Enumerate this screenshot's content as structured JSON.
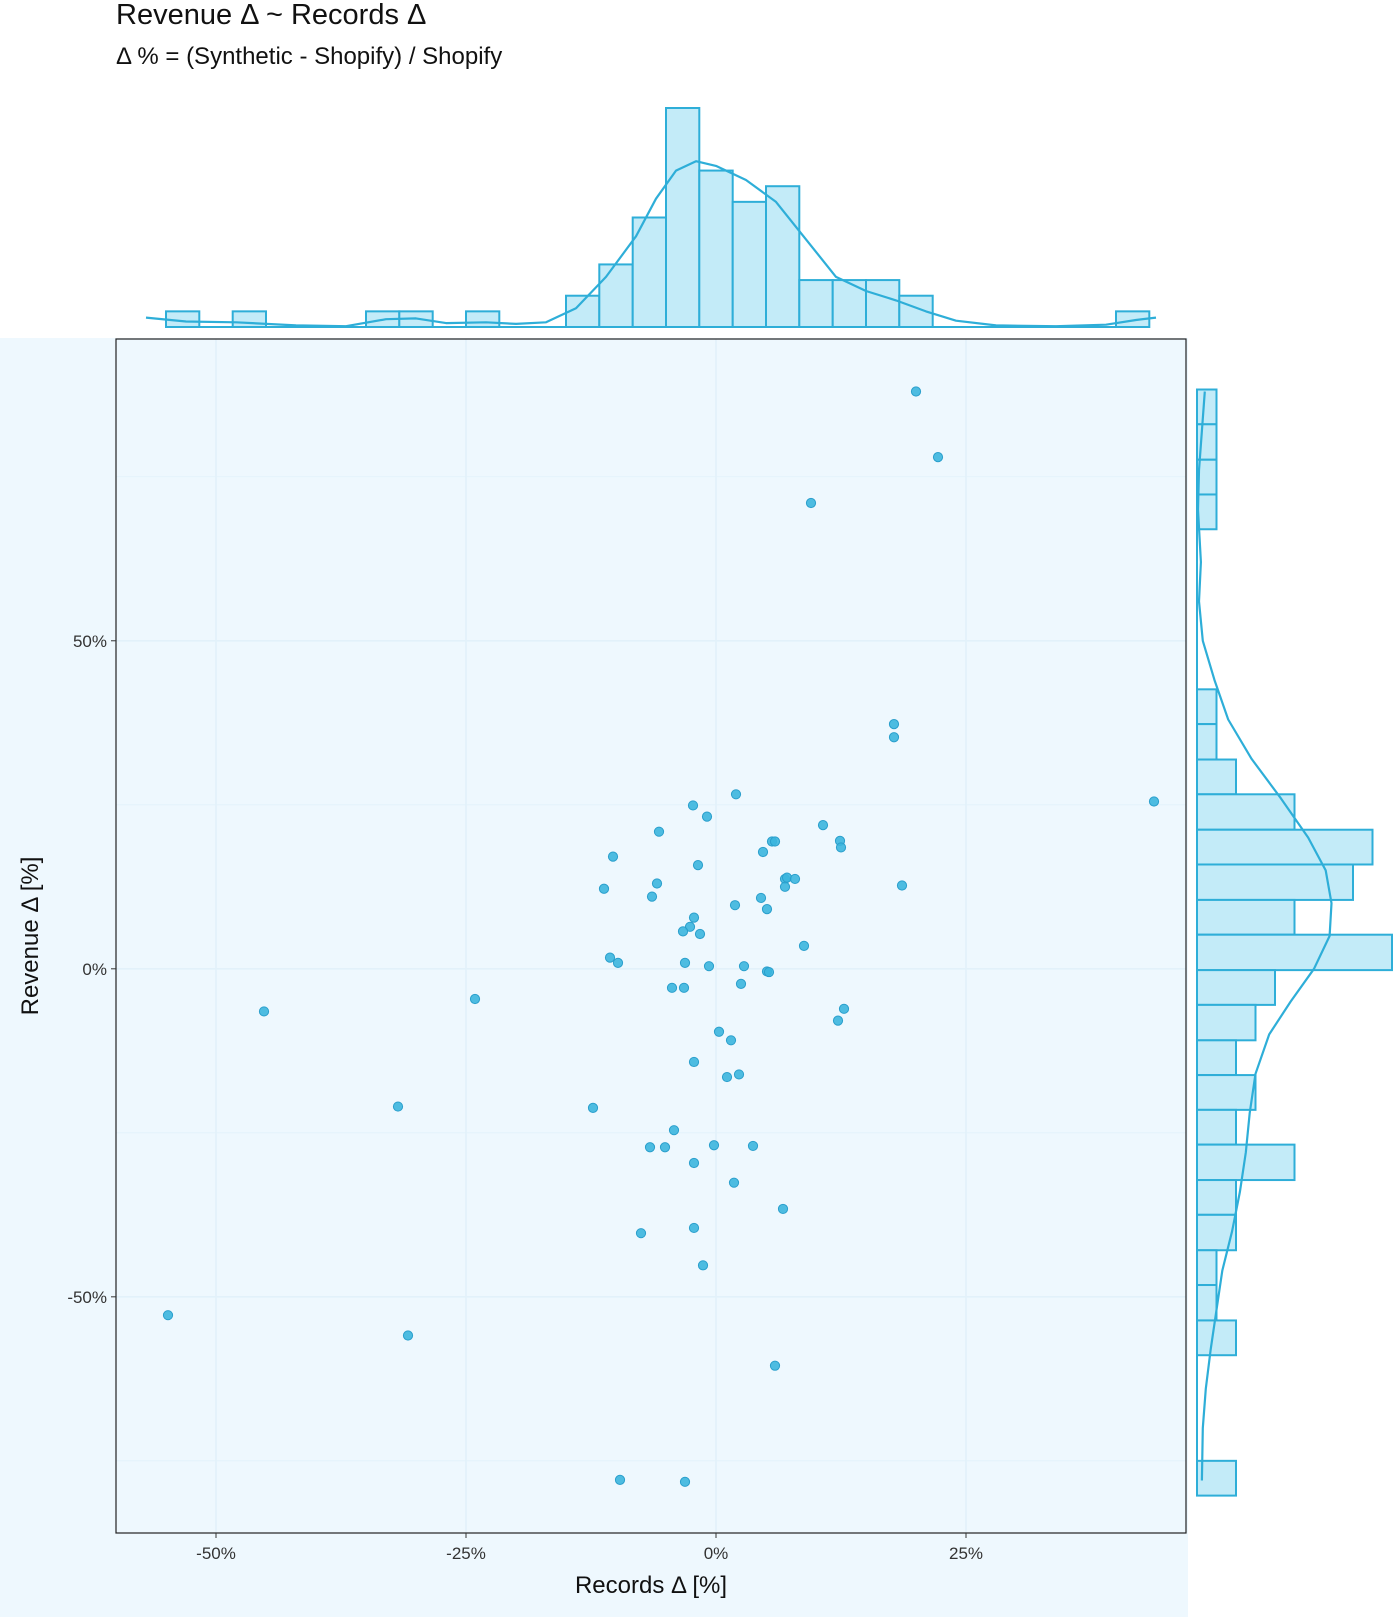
{
  "chart_data": {
    "type": "scatter",
    "title": "Revenue Δ ~ Records Δ",
    "subtitle": "Δ % = (Synthetic - Shopify) / Shopify",
    "xlabel": "Records Δ [%]",
    "ylabel": "Revenue Δ [%]",
    "xlim": [
      -60,
      47
    ],
    "ylim": [
      -86,
      96
    ],
    "x_ticks": [
      {
        "value": -50,
        "label": "-50%"
      },
      {
        "value": -25,
        "label": "-25%"
      },
      {
        "value": 0,
        "label": "0%"
      },
      {
        "value": 25,
        "label": "25%"
      }
    ],
    "y_ticks": [
      {
        "value": 50,
        "label": "50%"
      },
      {
        "value": 0,
        "label": "0%"
      },
      {
        "value": -50,
        "label": "-50%"
      }
    ],
    "grid": true,
    "marginals": "histogram with density curve on top (Records Δ) and right (Revenue Δ)",
    "colors": {
      "point": "#3bb5de",
      "point_stroke": "#2a9fcc",
      "hist_fill": "#c3ebf8",
      "hist_stroke": "#2eaed8",
      "panel": "#eef8fe",
      "grid": "#e2f1fa"
    },
    "points": [
      {
        "x": 20,
        "y": 88
      },
      {
        "x": 22.2,
        "y": 78
      },
      {
        "x": 9.5,
        "y": 71
      },
      {
        "x": 17.8,
        "y": 37.3
      },
      {
        "x": 17.8,
        "y": 35.3
      },
      {
        "x": 43.8,
        "y": 25.5
      },
      {
        "x": 2,
        "y": 26.6
      },
      {
        "x": -2.3,
        "y": 24.9
      },
      {
        "x": -0.9,
        "y": 23.2
      },
      {
        "x": -5.7,
        "y": 20.9
      },
      {
        "x": 10.7,
        "y": 21.9
      },
      {
        "x": 5.6,
        "y": 19.4
      },
      {
        "x": 5.9,
        "y": 19.4
      },
      {
        "x": 12.4,
        "y": 19.5
      },
      {
        "x": 12.5,
        "y": 18.5
      },
      {
        "x": 4.7,
        "y": 17.8
      },
      {
        "x": -10.3,
        "y": 17.1
      },
      {
        "x": -1.8,
        "y": 15.8
      },
      {
        "x": 6.9,
        "y": 13.7
      },
      {
        "x": 7.1,
        "y": 13.9
      },
      {
        "x": 7.9,
        "y": 13.7
      },
      {
        "x": -5.9,
        "y": 13
      },
      {
        "x": 6.9,
        "y": 12.5
      },
      {
        "x": -11.2,
        "y": 12.2
      },
      {
        "x": 18.6,
        "y": 12.7
      },
      {
        "x": -6.4,
        "y": 11
      },
      {
        "x": 4.5,
        "y": 10.8
      },
      {
        "x": 1.9,
        "y": 9.7
      },
      {
        "x": 5.1,
        "y": 9.1
      },
      {
        "x": -2.2,
        "y": 7.8
      },
      {
        "x": -2.6,
        "y": 6.4
      },
      {
        "x": -3.3,
        "y": 5.7
      },
      {
        "x": -1.6,
        "y": 5.3
      },
      {
        "x": 8.8,
        "y": 3.5
      },
      {
        "x": -10.6,
        "y": 1.7
      },
      {
        "x": -9.8,
        "y": 0.9
      },
      {
        "x": -3.1,
        "y": 0.9
      },
      {
        "x": -0.7,
        "y": 0.4
      },
      {
        "x": 2.8,
        "y": 0.4
      },
      {
        "x": 5.1,
        "y": -0.4
      },
      {
        "x": 5.3,
        "y": -0.5
      },
      {
        "x": 2.5,
        "y": -2.3
      },
      {
        "x": -4.4,
        "y": -2.9
      },
      {
        "x": -3.2,
        "y": -2.9
      },
      {
        "x": -24.1,
        "y": -4.6
      },
      {
        "x": -45.2,
        "y": -6.5
      },
      {
        "x": 12.8,
        "y": -6.1
      },
      {
        "x": 12.2,
        "y": -7.9
      },
      {
        "x": 0.3,
        "y": -9.6
      },
      {
        "x": 1.5,
        "y": -10.9
      },
      {
        "x": -2.2,
        "y": -14.2
      },
      {
        "x": 2.3,
        "y": -16.1
      },
      {
        "x": 1.1,
        "y": -16.5
      },
      {
        "x": -31.8,
        "y": -21
      },
      {
        "x": -12.3,
        "y": -21.2
      },
      {
        "x": -4.2,
        "y": -24.6
      },
      {
        "x": -6.6,
        "y": -27.2
      },
      {
        "x": -5.1,
        "y": -27.2
      },
      {
        "x": -0.2,
        "y": -26.9
      },
      {
        "x": 3.7,
        "y": -27
      },
      {
        "x": -2.2,
        "y": -29.6
      },
      {
        "x": 1.8,
        "y": -32.6
      },
      {
        "x": 6.7,
        "y": -36.6
      },
      {
        "x": -7.5,
        "y": -40.3
      },
      {
        "x": -2.2,
        "y": -39.5
      },
      {
        "x": -1.3,
        "y": -45.2
      },
      {
        "x": -54.8,
        "y": -52.8
      },
      {
        "x": -30.8,
        "y": -55.9
      },
      {
        "x": 5.9,
        "y": -60.5
      },
      {
        "x": -9.6,
        "y": -77.9
      },
      {
        "x": -3.1,
        "y": -78.2
      }
    ],
    "x_hist": {
      "bins": [
        [
          -55,
          -51.67,
          1
        ],
        [
          -48.33,
          -45,
          1
        ],
        [
          -35,
          -31.67,
          1
        ],
        [
          -31.67,
          -28.33,
          1
        ],
        [
          -25,
          -21.67,
          1
        ],
        [
          -15,
          -11.67,
          2
        ],
        [
          -11.67,
          -8.33,
          4
        ],
        [
          -8.33,
          -5,
          7
        ],
        [
          -5,
          -1.67,
          14
        ],
        [
          -1.67,
          1.67,
          10
        ],
        [
          1.67,
          5,
          8
        ],
        [
          5,
          8.33,
          9
        ],
        [
          8.33,
          11.67,
          3
        ],
        [
          11.67,
          15,
          3
        ],
        [
          15,
          18.33,
          3
        ],
        [
          18.33,
          21.67,
          2
        ],
        [
          40,
          43.33,
          1
        ]
      ],
      "density": [
        [
          -57,
          0.6
        ],
        [
          -53,
          0.35
        ],
        [
          -48,
          0.3
        ],
        [
          -42,
          0.1
        ],
        [
          -37,
          0.05
        ],
        [
          -33,
          0.5
        ],
        [
          -30,
          0.55
        ],
        [
          -27,
          0.25
        ],
        [
          -23,
          0.3
        ],
        [
          -20,
          0.2
        ],
        [
          -17,
          0.3
        ],
        [
          -14,
          1.2
        ],
        [
          -11,
          3.2
        ],
        [
          -8,
          5.8
        ],
        [
          -6,
          8.2
        ],
        [
          -4,
          10.0
        ],
        [
          -2,
          10.6
        ],
        [
          0,
          10.3
        ],
        [
          3,
          9.4
        ],
        [
          6,
          8.0
        ],
        [
          9,
          5.6
        ],
        [
          12,
          3.2
        ],
        [
          15,
          2.3
        ],
        [
          18,
          1.7
        ],
        [
          21,
          1.0
        ],
        [
          24,
          0.4
        ],
        [
          28,
          0.1
        ],
        [
          34,
          0.05
        ],
        [
          39,
          0.15
        ],
        [
          42,
          0.45
        ],
        [
          44,
          0.6
        ]
      ]
    },
    "y_hist": {
      "bins": [
        [
          88.3,
          83,
          1
        ],
        [
          83,
          77.6,
          1
        ],
        [
          77.6,
          72.3,
          1
        ],
        [
          72.3,
          67,
          1
        ],
        [
          42.6,
          37.3,
          1
        ],
        [
          37.3,
          31.9,
          1
        ],
        [
          31.9,
          26.6,
          2
        ],
        [
          26.6,
          21.2,
          5
        ],
        [
          21.2,
          15.9,
          9
        ],
        [
          15.9,
          10.5,
          8
        ],
        [
          10.5,
          5.2,
          5
        ],
        [
          5.2,
          -0.2,
          10
        ],
        [
          -0.2,
          -5.5,
          4
        ],
        [
          -5.5,
          -10.9,
          3
        ],
        [
          -10.9,
          -16.2,
          2
        ],
        [
          -16.2,
          -21.5,
          3
        ],
        [
          -21.5,
          -26.8,
          2
        ],
        [
          -26.8,
          -32.2,
          5
        ],
        [
          -32.2,
          -37.5,
          2
        ],
        [
          -37.5,
          -42.9,
          2
        ],
        [
          -42.9,
          -48.2,
          1
        ],
        [
          -48.2,
          -53.6,
          1
        ],
        [
          -53.6,
          -58.9,
          2
        ],
        [
          -58.9,
          -64.3,
          0
        ],
        [
          -64.3,
          -69.6,
          0
        ],
        [
          -69.6,
          -75,
          0
        ],
        [
          -75,
          -80.3,
          2
        ]
      ],
      "density": [
        [
          88,
          0.4
        ],
        [
          82,
          0.25
        ],
        [
          76,
          0.1
        ],
        [
          70,
          0.05
        ],
        [
          62,
          0.2
        ],
        [
          56,
          0.1
        ],
        [
          50,
          0.3
        ],
        [
          44,
          0.9
        ],
        [
          38,
          1.6
        ],
        [
          32,
          2.8
        ],
        [
          26,
          4.3
        ],
        [
          20,
          5.7
        ],
        [
          15,
          6.6
        ],
        [
          10,
          6.9
        ],
        [
          5,
          6.8
        ],
        [
          0,
          6.0
        ],
        [
          -5,
          4.8
        ],
        [
          -10,
          3.7
        ],
        [
          -16,
          3.0
        ],
        [
          -22,
          2.7
        ],
        [
          -28,
          2.5
        ],
        [
          -34,
          2.2
        ],
        [
          -40,
          1.8
        ],
        [
          -46,
          1.3
        ],
        [
          -52,
          1.0
        ],
        [
          -58,
          0.7
        ],
        [
          -64,
          0.45
        ],
        [
          -70,
          0.3
        ],
        [
          -78,
          0.25
        ]
      ]
    }
  }
}
